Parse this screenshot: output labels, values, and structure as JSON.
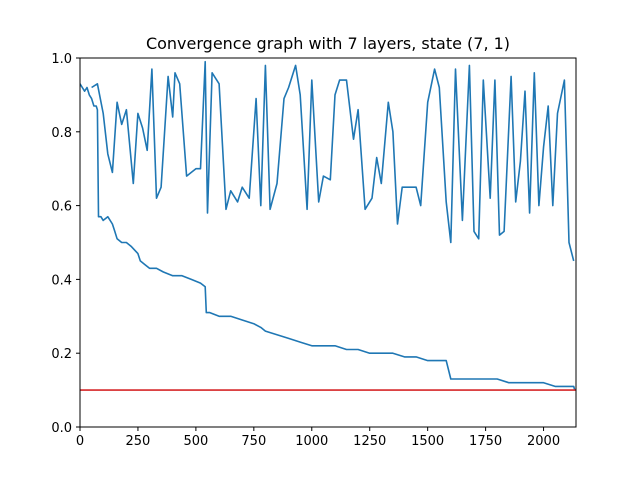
{
  "chart_data": {
    "type": "line",
    "title": "Convergence graph with 7 layers, state (7, 1)",
    "xlabel": "",
    "ylabel": "",
    "xlim": [
      0,
      2140
    ],
    "ylim": [
      0,
      1.0
    ],
    "grid": false,
    "legend": "none",
    "x_ticks": [
      0,
      250,
      500,
      750,
      1000,
      1250,
      1500,
      1750,
      2000
    ],
    "x_tick_labels": [
      "0",
      "250",
      "500",
      "750",
      "1000",
      "1250",
      "1500",
      "1750",
      "2000"
    ],
    "y_ticks": [
      0.0,
      0.2,
      0.4,
      0.6,
      0.8,
      1.0
    ],
    "y_tick_labels": [
      "0.0",
      "0.2",
      "0.4",
      "0.6",
      "0.8",
      "1.0"
    ],
    "series": [
      {
        "color": "#1f77b4",
        "x": [
          0,
          10,
          20,
          30,
          40,
          50,
          60,
          70,
          75,
          80,
          90,
          100,
          120,
          140,
          150,
          160,
          180,
          200,
          220,
          250,
          260,
          280,
          300,
          330,
          360,
          400,
          440,
          480,
          520,
          540,
          545,
          560,
          600,
          650,
          700,
          750,
          780,
          800,
          850,
          900,
          950,
          1000,
          1050,
          1100,
          1150,
          1200,
          1250,
          1300,
          1350,
          1400,
          1450,
          1500,
          1550,
          1580,
          1600,
          1610,
          1650,
          1700,
          1750,
          1800,
          1850,
          1900,
          1950,
          2000,
          2050,
          2100,
          2130,
          2135
        ],
        "values": [
          0.93,
          0.92,
          0.91,
          0.92,
          0.9,
          0.89,
          0.87,
          0.87,
          0.86,
          0.57,
          0.57,
          0.56,
          0.57,
          0.55,
          0.53,
          0.51,
          0.5,
          0.5,
          0.49,
          0.47,
          0.45,
          0.44,
          0.43,
          0.43,
          0.42,
          0.41,
          0.41,
          0.4,
          0.39,
          0.38,
          0.31,
          0.31,
          0.3,
          0.3,
          0.29,
          0.28,
          0.27,
          0.26,
          0.25,
          0.24,
          0.23,
          0.22,
          0.22,
          0.22,
          0.21,
          0.21,
          0.2,
          0.2,
          0.2,
          0.19,
          0.19,
          0.18,
          0.18,
          0.18,
          0.13,
          0.13,
          0.13,
          0.13,
          0.13,
          0.13,
          0.12,
          0.12,
          0.12,
          0.12,
          0.11,
          0.11,
          0.11,
          0.1
        ]
      },
      {
        "color": "#1f77b4",
        "x": [
          50,
          75,
          100,
          120,
          140,
          160,
          180,
          200,
          230,
          250,
          270,
          290,
          310,
          330,
          350,
          380,
          400,
          410,
          430,
          460,
          480,
          500,
          520,
          540,
          550,
          570,
          600,
          630,
          650,
          680,
          700,
          730,
          760,
          780,
          800,
          820,
          850,
          880,
          900,
          930,
          950,
          980,
          1000,
          1030,
          1050,
          1080,
          1100,
          1120,
          1150,
          1180,
          1200,
          1230,
          1260,
          1280,
          1300,
          1330,
          1350,
          1370,
          1390,
          1410,
          1430,
          1450,
          1470,
          1500,
          1530,
          1550,
          1580,
          1600,
          1620,
          1650,
          1680,
          1700,
          1720,
          1740,
          1770,
          1790,
          1810,
          1830,
          1860,
          1880,
          1900,
          1920,
          1940,
          1960,
          1980,
          2000,
          2020,
          2040,
          2060,
          2090,
          2110,
          2130
        ],
        "values": [
          0.92,
          0.93,
          0.85,
          0.74,
          0.69,
          0.88,
          0.82,
          0.86,
          0.66,
          0.85,
          0.81,
          0.75,
          0.97,
          0.62,
          0.65,
          0.95,
          0.84,
          0.96,
          0.93,
          0.68,
          0.69,
          0.7,
          0.7,
          0.99,
          0.58,
          0.96,
          0.93,
          0.59,
          0.64,
          0.61,
          0.65,
          0.62,
          0.89,
          0.6,
          0.98,
          0.59,
          0.66,
          0.89,
          0.92,
          0.98,
          0.9,
          0.59,
          0.94,
          0.61,
          0.68,
          0.67,
          0.9,
          0.94,
          0.94,
          0.78,
          0.86,
          0.59,
          0.62,
          0.73,
          0.66,
          0.88,
          0.8,
          0.55,
          0.65,
          0.65,
          0.65,
          0.65,
          0.6,
          0.88,
          0.97,
          0.92,
          0.61,
          0.5,
          0.97,
          0.56,
          0.98,
          0.53,
          0.51,
          0.94,
          0.62,
          0.94,
          0.52,
          0.53,
          0.95,
          0.61,
          0.72,
          0.91,
          0.58,
          0.96,
          0.6,
          0.76,
          0.87,
          0.6,
          0.85,
          0.94,
          0.5,
          0.45
        ]
      },
      {
        "color": "#d62728",
        "x": [
          0,
          2140
        ],
        "values": [
          0.1,
          0.1
        ]
      }
    ]
  }
}
